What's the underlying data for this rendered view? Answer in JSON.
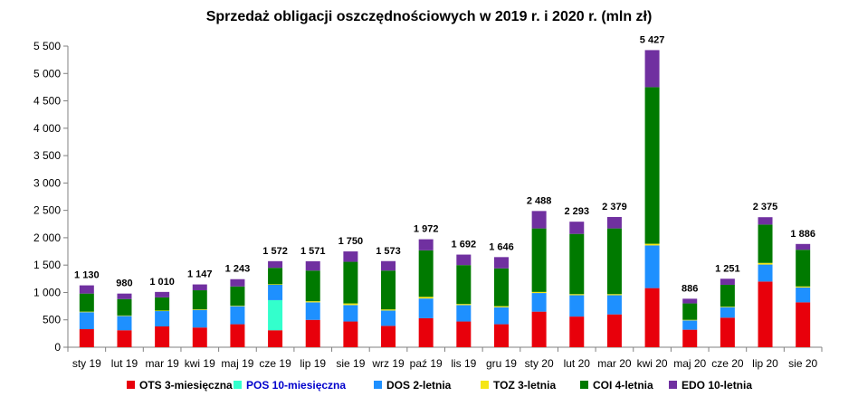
{
  "chart_data": {
    "type": "bar",
    "stacked": true,
    "title": "Sprzedaż obligacji oszczędnościowych w 2019 r. i 2020 r. (mln zł)",
    "xlabel": "",
    "ylabel": "",
    "ylim": [
      0,
      5500
    ],
    "yticks": [
      0,
      500,
      1000,
      1500,
      2000,
      2500,
      3000,
      3500,
      4000,
      4500,
      5000,
      5500
    ],
    "ytick_labels": [
      "0",
      "500",
      "1 000",
      "1 500",
      "2 000",
      "2 500",
      "3 000",
      "3 500",
      "4 000",
      "4 500",
      "5 000",
      "5 500"
    ],
    "grid": false,
    "legend_position": "bottom",
    "categories": [
      "sty 19",
      "lut 19",
      "mar 19",
      "kwi 19",
      "maj 19",
      "cze 19",
      "lip 19",
      "sie 19",
      "wrz 19",
      "paź 19",
      "lis 19",
      "gru 19",
      "sty 20",
      "lut 20",
      "mar 20",
      "kwi 20",
      "maj 20",
      "cze 20",
      "lip 20",
      "sie 20"
    ],
    "totals": [
      1130,
      980,
      1010,
      1147,
      1243,
      1572,
      1571,
      1750,
      1573,
      1972,
      1692,
      1646,
      2488,
      2293,
      2379,
      5427,
      886,
      1251,
      2375,
      1886
    ],
    "total_labels": [
      "1 130",
      "980",
      "1 010",
      "1 147",
      "1 243",
      "1 572",
      "1 571",
      "1 750",
      "1 573",
      "1 972",
      "1 692",
      "1 646",
      "2 488",
      "2 293",
      "2 379",
      "5 427",
      "886",
      "1 251",
      "2 375",
      "1 886"
    ],
    "series": [
      {
        "name": "OTS 3-miesięczna",
        "color": "#e8000b",
        "values": [
          330,
          310,
          380,
          360,
          420,
          310,
          500,
          470,
          390,
          530,
          470,
          420,
          650,
          560,
          600,
          1080,
          320,
          540,
          1200,
          820
        ]
      },
      {
        "name": "POS 10-miesięczna",
        "color": "#33ffcc",
        "values": [
          0,
          0,
          0,
          0,
          0,
          550,
          0,
          0,
          0,
          0,
          0,
          0,
          0,
          0,
          0,
          0,
          0,
          0,
          0,
          0
        ]
      },
      {
        "name": "DOS 2-letnia",
        "color": "#1e90ff",
        "values": [
          310,
          260,
          280,
          320,
          330,
          280,
          320,
          300,
          280,
          360,
          300,
          310,
          340,
          390,
          350,
          780,
          170,
          190,
          310,
          270
        ]
      },
      {
        "name": "TOZ 3-letnia",
        "color": "#f5e614",
        "values": [
          10,
          10,
          10,
          10,
          10,
          10,
          20,
          30,
          20,
          30,
          20,
          20,
          20,
          20,
          20,
          30,
          10,
          10,
          30,
          20
        ]
      },
      {
        "name": "COI 4-letnia",
        "color": "#007a00",
        "values": [
          330,
          300,
          240,
          350,
          350,
          300,
          560,
          760,
          710,
          850,
          710,
          690,
          1160,
          1100,
          1200,
          2860,
          300,
          400,
          700,
          670
        ]
      },
      {
        "name": "EDO 10-letnia",
        "color": "#7030a0",
        "values": [
          150,
          100,
          100,
          107,
          133,
          122,
          171,
          190,
          173,
          202,
          192,
          206,
          318,
          223,
          209,
          677,
          86,
          111,
          135,
          106
        ]
      }
    ],
    "legend_label_colors": [
      "#000000",
      "#0000cc",
      "#000000",
      "#000000",
      "#000000",
      "#000000"
    ]
  }
}
